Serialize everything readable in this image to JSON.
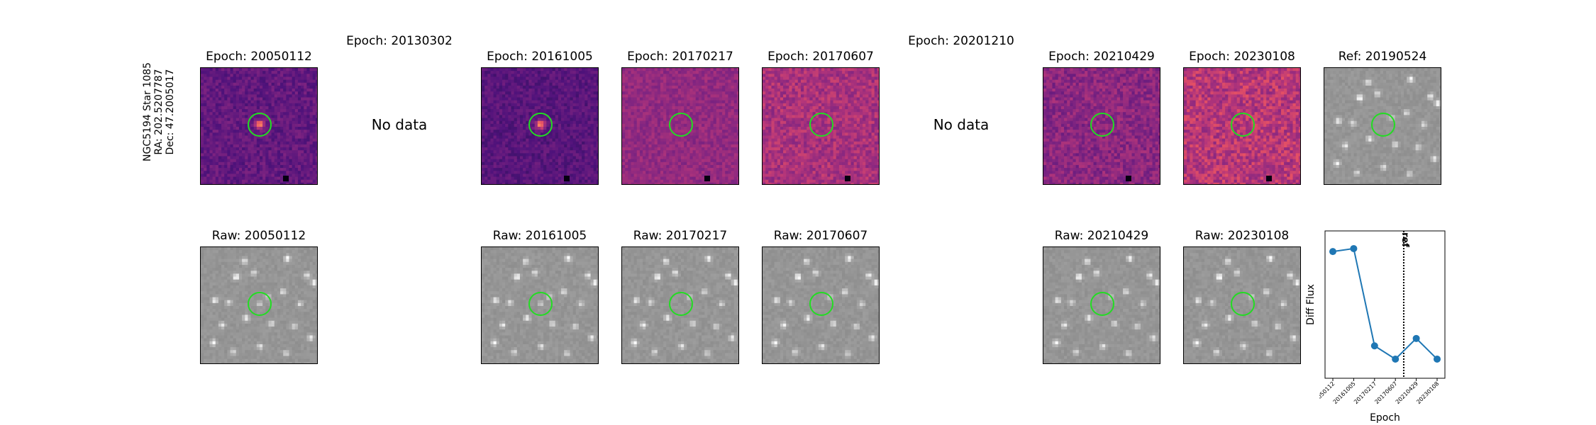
{
  "star_label": {
    "line1": "NGC5194 Star 1085",
    "line2": "RA: 202.5207787",
    "line3": "Dec: 47.2005017"
  },
  "diff_columns": [
    {
      "title": "Epoch: 20050112",
      "has_data": true,
      "variant": "a"
    },
    {
      "title": "Epoch: 20130302",
      "has_data": false,
      "no_data_text": "No data"
    },
    {
      "title": "Epoch: 20161005",
      "has_data": true,
      "variant": "b"
    },
    {
      "title": "Epoch: 20170217",
      "has_data": true,
      "variant": "c"
    },
    {
      "title": "Epoch: 20170607",
      "has_data": true,
      "variant": "d"
    },
    {
      "title": "Epoch: 20201210",
      "has_data": false,
      "no_data_text": "No data"
    },
    {
      "title": "Epoch: 20210429",
      "has_data": true,
      "variant": "e"
    },
    {
      "title": "Epoch: 20230108",
      "has_data": true,
      "variant": "f"
    },
    {
      "title": "Ref: 20190524",
      "has_data": true,
      "variant": "ref"
    }
  ],
  "raw_columns": [
    {
      "title": "Raw: 20050112",
      "variant": "a"
    },
    null,
    {
      "title": "Raw: 20161005",
      "variant": "b"
    },
    {
      "title": "Raw: 20170217",
      "variant": "c"
    },
    {
      "title": "Raw: 20170607",
      "variant": "d"
    },
    null,
    {
      "title": "Raw: 20210429",
      "variant": "e"
    },
    {
      "title": "Raw: 20230108",
      "variant": "f"
    }
  ],
  "colors": {
    "circle": "#22dd22",
    "series": "#1f77b4",
    "magma_low": "#3b0f70",
    "magma_high": "#fcfdbf"
  },
  "chart_data": {
    "type": "line",
    "x": [
      "20050112",
      "20161005",
      "20170217",
      "20170607",
      "20210429",
      "20230108"
    ],
    "values": [
      0.86,
      0.88,
      0.22,
      0.13,
      0.27,
      0.13
    ],
    "ylabel": "Diff Flux",
    "xlabel": "Epoch",
    "ref_marker_label": "ref",
    "ref_epoch": "20190524",
    "y_ticks_shown": false,
    "grid": false
  }
}
